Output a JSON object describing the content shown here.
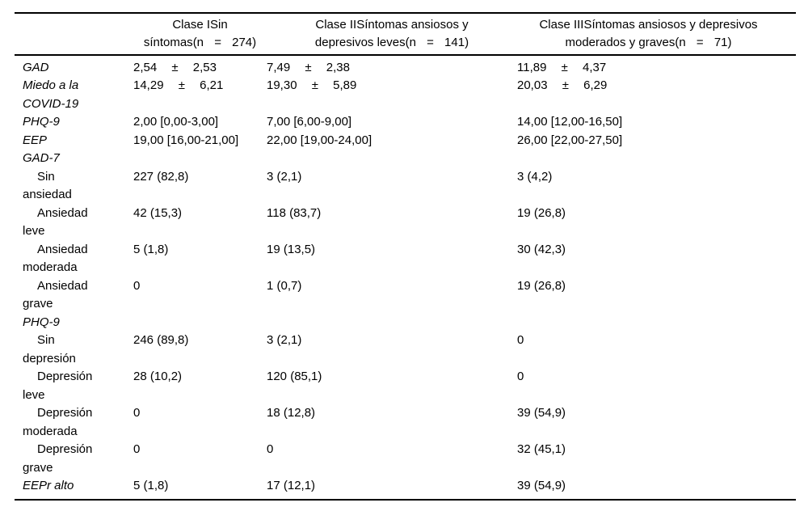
{
  "table": {
    "columns": [
      {
        "line1": "Clase ISin",
        "line2": "síntomas",
        "npart": "(n = 274)"
      },
      {
        "line1": "Clase IISíntomas ansiosos y",
        "line2": "depresivos leves",
        "npart": "(n = 141)"
      },
      {
        "line1": "Clase IIISíntomas ansiosos y depresivos",
        "line2": "moderados y graves",
        "npart": "(n = 71)"
      }
    ],
    "rows": [
      {
        "style": "measure",
        "pm": true,
        "label_lines": [
          "GAD"
        ],
        "cells": [
          "2,54 ± 2,53",
          "7,49 ± 2,38",
          "11,89 ± 4,37"
        ]
      },
      {
        "style": "measure",
        "pm": true,
        "label_lines": [
          "Miedo a la",
          "COVID-19"
        ],
        "cells": [
          "14,29 ± 6,21",
          "19,30 ± 5,89",
          "20,03 ± 6,29"
        ]
      },
      {
        "style": "measure",
        "pm": false,
        "label_lines": [
          "PHQ-9"
        ],
        "cells": [
          "2,00 [0,00-3,00]",
          "7,00 [6,00-9,00]",
          "14,00 [12,00-16,50]"
        ]
      },
      {
        "style": "measure",
        "pm": false,
        "label_lines": [
          "EEP"
        ],
        "cells": [
          "19,00 [16,00-21,00]",
          "22,00 [19,00-24,00]",
          "26,00 [22,00-27,50]"
        ]
      },
      {
        "style": "section",
        "pm": false,
        "label_lines": [
          "GAD-7"
        ],
        "cells": [
          "",
          "",
          ""
        ]
      },
      {
        "style": "sub",
        "pm": false,
        "label_lines": [
          "Sin",
          "ansiedad"
        ],
        "cells": [
          "227 (82,8)",
          "3 (2,1)",
          "3 (4,2)"
        ]
      },
      {
        "style": "sub",
        "pm": false,
        "label_lines": [
          "Ansiedad",
          "leve"
        ],
        "cells": [
          "42 (15,3)",
          "118 (83,7)",
          "19 (26,8)"
        ]
      },
      {
        "style": "sub",
        "pm": false,
        "label_lines": [
          "Ansiedad",
          "moderada"
        ],
        "cells": [
          "5 (1,8)",
          "19 (13,5)",
          "30 (42,3)"
        ]
      },
      {
        "style": "sub",
        "pm": false,
        "label_lines": [
          "Ansiedad",
          "grave"
        ],
        "cells": [
          "0",
          "1 (0,7)",
          "19 (26,8)"
        ]
      },
      {
        "style": "section",
        "pm": false,
        "label_lines": [
          "PHQ-9"
        ],
        "cells": [
          "",
          "",
          ""
        ]
      },
      {
        "style": "sub",
        "pm": false,
        "label_lines": [
          "Sin",
          "depresión"
        ],
        "cells": [
          "246 (89,8)",
          "3 (2,1)",
          "0"
        ]
      },
      {
        "style": "sub",
        "pm": false,
        "label_lines": [
          "Depresión",
          "leve"
        ],
        "cells": [
          "28 (10,2)",
          "120 (85,1)",
          "0"
        ]
      },
      {
        "style": "sub",
        "pm": false,
        "label_lines": [
          "Depresión",
          "moderada"
        ],
        "cells": [
          "0",
          "18 (12,8)",
          "39 (54,9)"
        ]
      },
      {
        "style": "sub",
        "pm": false,
        "label_lines": [
          "Depresión",
          "grave"
        ],
        "cells": [
          "0",
          "0",
          "32 (45,1)"
        ]
      },
      {
        "style": "measure",
        "pm": false,
        "label_lines": [
          "EEPr alto"
        ],
        "cells": [
          "5 (1,8)",
          "17 (12,1)",
          "39 (54,9)"
        ]
      }
    ]
  }
}
